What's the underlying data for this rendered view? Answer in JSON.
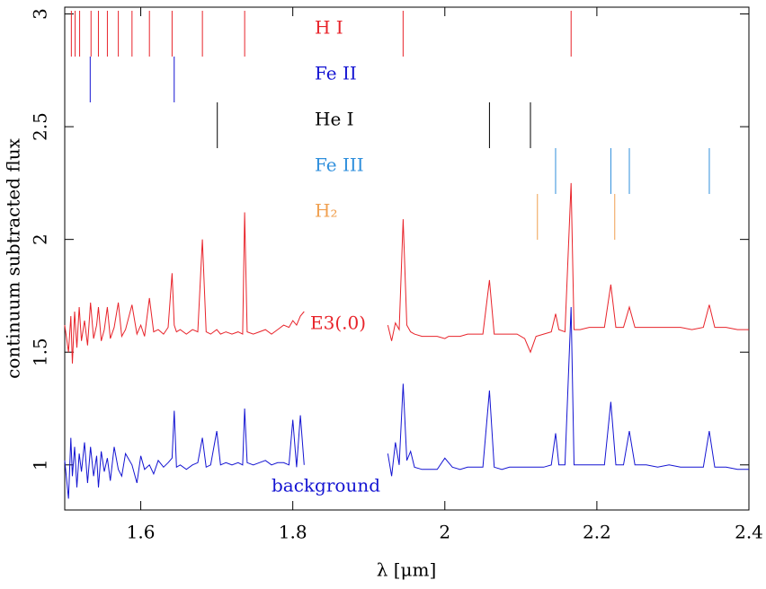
{
  "chart_data": {
    "type": "line",
    "xlabel": "λ [μm]",
    "ylabel": "continuum subtracted flux",
    "xlim": [
      1.5,
      2.4
    ],
    "xticks": [
      1.6,
      1.8,
      2,
      2.2,
      2.4
    ],
    "ylim": [
      0.8,
      3.03
    ],
    "yticks": [
      1,
      1.5,
      2,
      2.5,
      3
    ],
    "x": [
      1.5,
      1.505,
      1.508,
      1.51,
      1.513,
      1.516,
      1.519,
      1.522,
      1.526,
      1.53,
      1.534,
      1.538,
      1.542,
      1.5443,
      1.548,
      1.552,
      1.5561,
      1.56,
      1.565,
      1.5705,
      1.575,
      1.58,
      1.5885,
      1.595,
      1.6,
      1.605,
      1.6114,
      1.617,
      1.623,
      1.63,
      1.636,
      1.6412,
      1.644,
      1.647,
      1.652,
      1.66,
      1.668,
      1.675,
      1.6811,
      1.686,
      1.692,
      1.7,
      1.705,
      1.712,
      1.72,
      1.728,
      1.734,
      1.7367,
      1.74,
      1.748,
      1.756,
      1.764,
      1.772,
      1.78,
      1.788,
      1.795,
      1.8,
      1.805,
      1.81,
      1.815,
      1.87,
      1.925,
      1.93,
      1.935,
      1.94,
      1.9451,
      1.95,
      1.955,
      1.96,
      1.97,
      1.98,
      1.99,
      2.0,
      2.005,
      2.01,
      2.02,
      2.03,
      2.04,
      2.05,
      2.0587,
      2.065,
      2.075,
      2.085,
      2.095,
      2.105,
      2.1126,
      2.12,
      2.13,
      2.14,
      2.1457,
      2.15,
      2.158,
      2.1661,
      2.17,
      2.178,
      2.19,
      2.2,
      2.21,
      2.2184,
      2.225,
      2.235,
      2.2427,
      2.25,
      2.265,
      2.28,
      2.295,
      2.31,
      2.325,
      2.34,
      2.3479,
      2.355,
      2.37,
      2.385,
      2.4
    ],
    "series": [
      {
        "name": "E3(.0)",
        "color": "#e8232a",
        "values": [
          1.62,
          1.5,
          1.66,
          1.45,
          1.68,
          1.52,
          1.7,
          1.55,
          1.64,
          1.53,
          1.72,
          1.56,
          1.62,
          1.7,
          1.55,
          1.6,
          1.7,
          1.56,
          1.61,
          1.72,
          1.57,
          1.6,
          1.71,
          1.58,
          1.62,
          1.57,
          1.74,
          1.59,
          1.6,
          1.58,
          1.61,
          1.85,
          1.62,
          1.59,
          1.6,
          1.58,
          1.6,
          1.59,
          2.0,
          1.59,
          1.58,
          1.6,
          1.58,
          1.59,
          1.58,
          1.59,
          1.58,
          2.12,
          1.59,
          1.58,
          1.59,
          1.6,
          1.58,
          1.6,
          1.62,
          1.61,
          1.64,
          1.62,
          1.66,
          1.68,
          null,
          1.62,
          1.55,
          1.63,
          1.6,
          2.09,
          1.62,
          1.59,
          1.58,
          1.57,
          1.57,
          1.57,
          1.56,
          1.57,
          1.57,
          1.57,
          1.58,
          1.58,
          1.58,
          1.82,
          1.58,
          1.58,
          1.58,
          1.58,
          1.56,
          1.5,
          1.57,
          1.58,
          1.59,
          1.67,
          1.6,
          1.59,
          2.25,
          1.6,
          1.6,
          1.61,
          1.61,
          1.61,
          1.8,
          1.61,
          1.61,
          1.7,
          1.61,
          1.61,
          1.61,
          1.61,
          1.61,
          1.6,
          1.61,
          1.71,
          1.61,
          1.61,
          1.6,
          1.6
        ]
      },
      {
        "name": "background",
        "color": "#1414d2",
        "values": [
          1.02,
          0.85,
          1.12,
          0.95,
          1.08,
          0.9,
          1.05,
          0.97,
          1.1,
          0.92,
          1.08,
          0.95,
          1.04,
          0.9,
          1.06,
          0.97,
          1.03,
          0.93,
          1.08,
          0.98,
          0.95,
          1.05,
          1.0,
          0.92,
          1.04,
          0.98,
          1.0,
          0.96,
          1.02,
          0.99,
          1.01,
          1.03,
          1.24,
          0.99,
          1.0,
          0.98,
          1.0,
          1.01,
          1.12,
          0.99,
          1.0,
          1.15,
          1.0,
          1.01,
          1.0,
          1.01,
          1.0,
          1.25,
          1.01,
          1.0,
          1.01,
          1.02,
          1.0,
          1.01,
          1.01,
          1.0,
          1.2,
          0.99,
          1.22,
          1.0,
          null,
          1.05,
          0.95,
          1.1,
          1.0,
          1.36,
          1.02,
          1.06,
          0.99,
          0.98,
          0.98,
          0.98,
          1.03,
          1.01,
          0.99,
          0.98,
          0.99,
          0.99,
          0.99,
          1.33,
          0.99,
          0.98,
          0.99,
          0.99,
          0.99,
          0.99,
          0.99,
          0.99,
          1.0,
          1.14,
          1.0,
          1.0,
          1.7,
          1.0,
          1.0,
          1.0,
          1.0,
          1.0,
          1.28,
          1.0,
          1.0,
          1.15,
          1.0,
          1.0,
          0.99,
          1.0,
          0.99,
          0.99,
          0.99,
          1.15,
          0.99,
          0.99,
          0.98,
          0.98
        ]
      }
    ],
    "line_markers": [
      {
        "name": "H I",
        "color": "#e8232a",
        "x": [
          1.5087,
          1.5137,
          1.5196,
          1.5346,
          1.5443,
          1.5561,
          1.5705,
          1.5885,
          1.6114,
          1.6412,
          1.6811,
          1.7367,
          1.9451,
          2.1661
        ]
      },
      {
        "name": "Fe II",
        "color": "#1414d2",
        "x": [
          1.5335,
          1.644
        ]
      },
      {
        "name": "He I",
        "color": "#000000",
        "x": [
          1.7007,
          2.0587,
          2.1126
        ]
      },
      {
        "name": "Fe III",
        "color": "#2f8fdc",
        "x": [
          2.1457,
          2.2184,
          2.2427,
          2.3479
        ]
      },
      {
        "name": "H₂",
        "color": "#f0a050",
        "x": [
          2.1218,
          2.2235
        ]
      }
    ]
  }
}
